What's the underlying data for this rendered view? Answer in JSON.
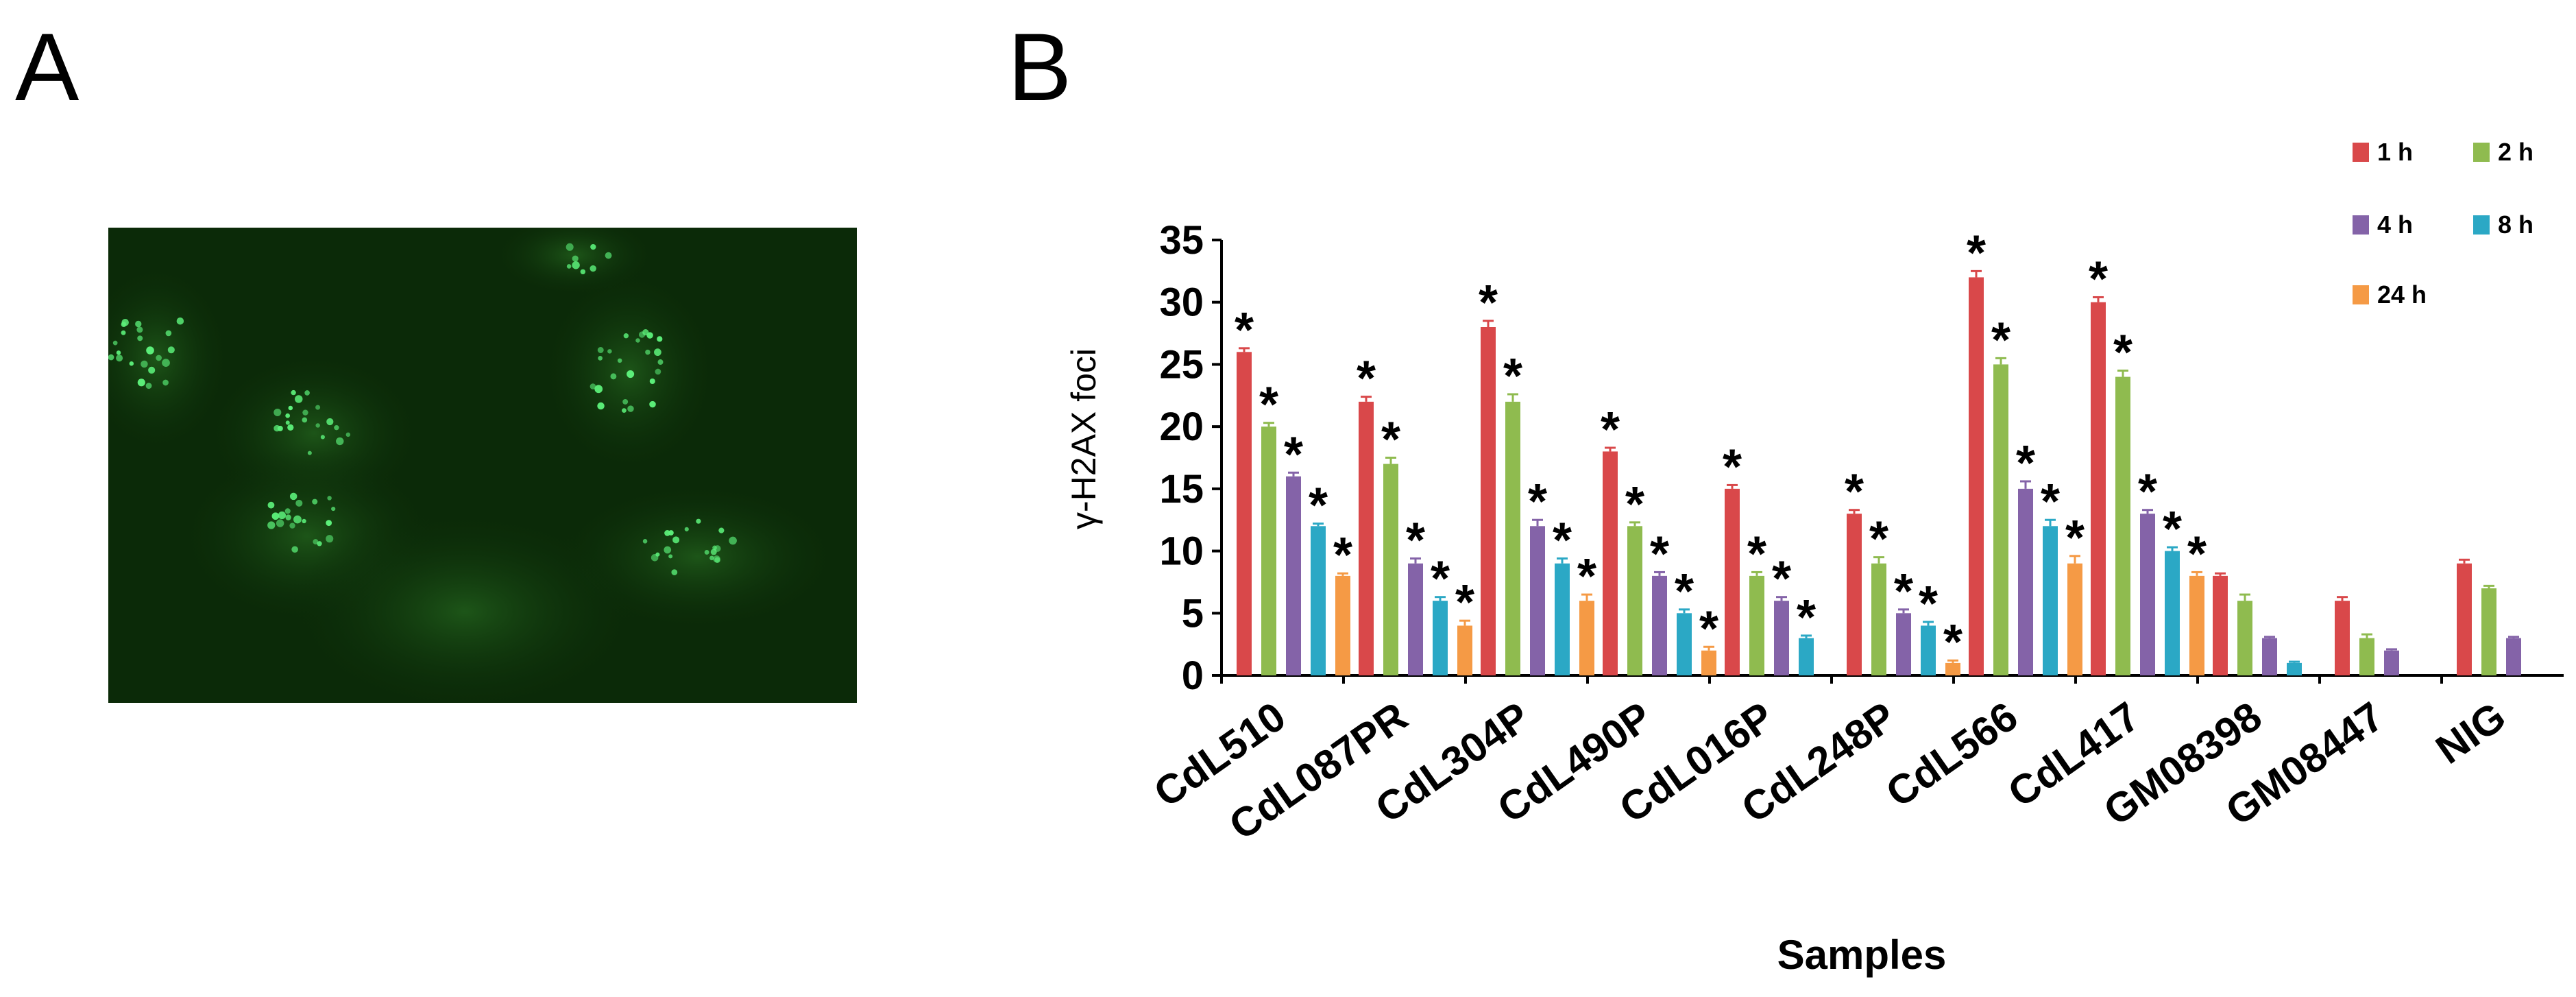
{
  "panels": {
    "a_label": "A",
    "b_label": "B"
  },
  "colors": {
    "series": [
      "#d9484a",
      "#8fbb4f",
      "#8463a8",
      "#2ba8c5",
      "#f59a45"
    ],
    "micrograph_bg": "#0b2a08",
    "foci": "#5cf07a"
  },
  "chart_data": {
    "type": "bar",
    "title": "",
    "xlabel": "Samples",
    "ylabel": "γ-H2AX foci",
    "ylim": [
      0,
      35
    ],
    "yticks": [
      0,
      5,
      10,
      15,
      20,
      25,
      30,
      35
    ],
    "legend_position": "top-right",
    "significance_marker": "*",
    "categories": [
      "CdL510",
      "CdL087PR",
      "CdL304P",
      "CdL490P",
      "CdL016P",
      "CdL248P",
      "CdL566",
      "CdL417",
      "GM08398",
      "GM08447",
      "NIG"
    ],
    "series": [
      {
        "name": "1 h",
        "values": [
          26,
          22,
          28,
          18,
          15,
          13,
          32,
          30,
          8,
          6,
          9
        ],
        "errors": [
          0.3,
          0.4,
          0.5,
          0.3,
          0.3,
          0.3,
          0.5,
          0.4,
          0.2,
          0.3,
          0.3
        ],
        "significant": [
          true,
          true,
          true,
          true,
          true,
          true,
          true,
          true,
          false,
          false,
          false
        ]
      },
      {
        "name": "2 h",
        "values": [
          20,
          17,
          22,
          12,
          8,
          9,
          25,
          24,
          6,
          3,
          7
        ],
        "errors": [
          0.3,
          0.5,
          0.6,
          0.3,
          0.3,
          0.5,
          0.5,
          0.5,
          0.5,
          0.3,
          0.2
        ],
        "significant": [
          true,
          true,
          true,
          true,
          true,
          true,
          true,
          true,
          false,
          false,
          false
        ]
      },
      {
        "name": "4 h",
        "values": [
          16,
          9,
          12,
          8,
          6,
          5,
          15,
          13,
          3,
          2,
          3
        ],
        "errors": [
          0.3,
          0.4,
          0.5,
          0.3,
          0.3,
          0.3,
          0.6,
          0.3,
          0.1,
          0.1,
          0.1
        ],
        "significant": [
          true,
          true,
          true,
          true,
          true,
          true,
          true,
          true,
          false,
          false,
          false
        ]
      },
      {
        "name": "8 h",
        "values": [
          12,
          6,
          9,
          5,
          3,
          4,
          12,
          10,
          1,
          null,
          null
        ],
        "errors": [
          0.2,
          0.3,
          0.4,
          0.3,
          0.2,
          0.3,
          0.5,
          0.3,
          0.1,
          null,
          null
        ],
        "significant": [
          true,
          true,
          true,
          true,
          true,
          true,
          true,
          true,
          false,
          false,
          false
        ]
      },
      {
        "name": "24 h",
        "values": [
          8,
          4,
          6,
          2,
          null,
          1,
          9,
          8,
          null,
          null,
          null
        ],
        "errors": [
          0.2,
          0.4,
          0.5,
          0.3,
          null,
          0.2,
          0.6,
          0.3,
          null,
          null,
          null
        ],
        "significant": [
          true,
          true,
          true,
          true,
          false,
          true,
          true,
          true,
          false,
          false,
          false
        ]
      }
    ]
  }
}
